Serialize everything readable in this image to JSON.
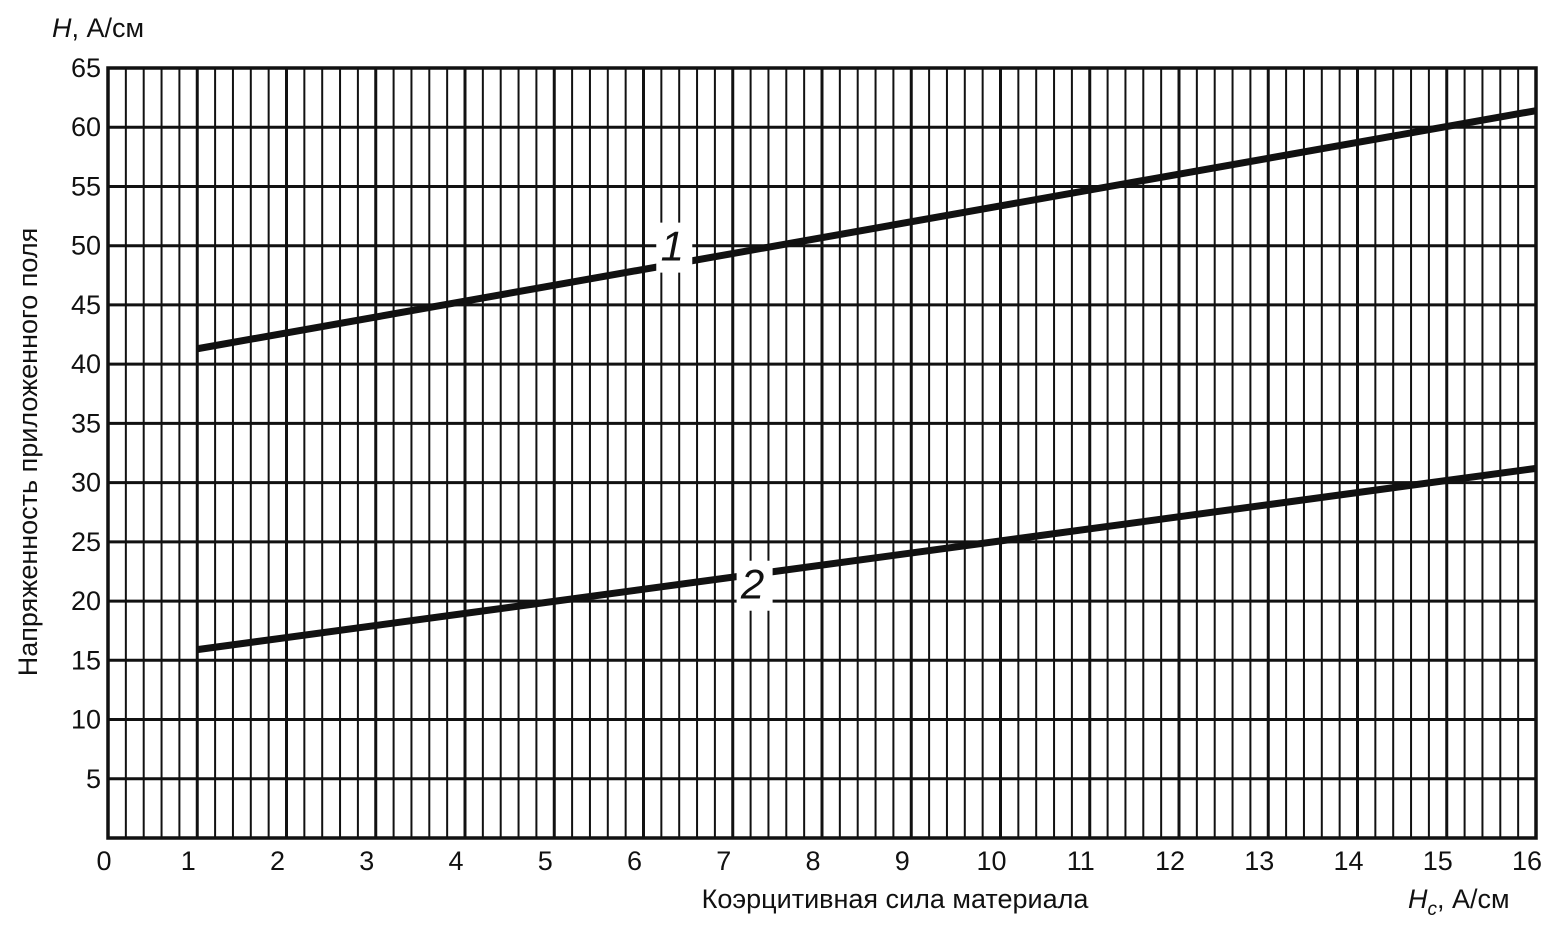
{
  "chart_data": {
    "type": "line",
    "x": [
      1,
      16
    ],
    "series": [
      {
        "name": "1",
        "values": [
          41.3,
          61.4
        ]
      },
      {
        "name": "2",
        "values": [
          15.9,
          31.2
        ]
      }
    ],
    "xlim": [
      0,
      16
    ],
    "ylim": [
      0,
      65
    ],
    "xticks": [
      0,
      1,
      2,
      3,
      4,
      5,
      6,
      7,
      8,
      9,
      10,
      11,
      12,
      13,
      14,
      15,
      16
    ],
    "yticks": [
      5,
      10,
      15,
      20,
      25,
      30,
      35,
      40,
      45,
      50,
      55,
      60,
      65
    ],
    "xlabel": "Коэрцитивная сила материала",
    "ylabel": "Напряженность приложенного поля",
    "y_unit_symbol": "H",
    "y_unit_text": ", А/см",
    "x_unit_symbol": "H",
    "x_unit_subscript": "c",
    "x_unit_text": ", А/см",
    "grid": true,
    "line_color": "#111111",
    "grid_color": "#111111"
  }
}
